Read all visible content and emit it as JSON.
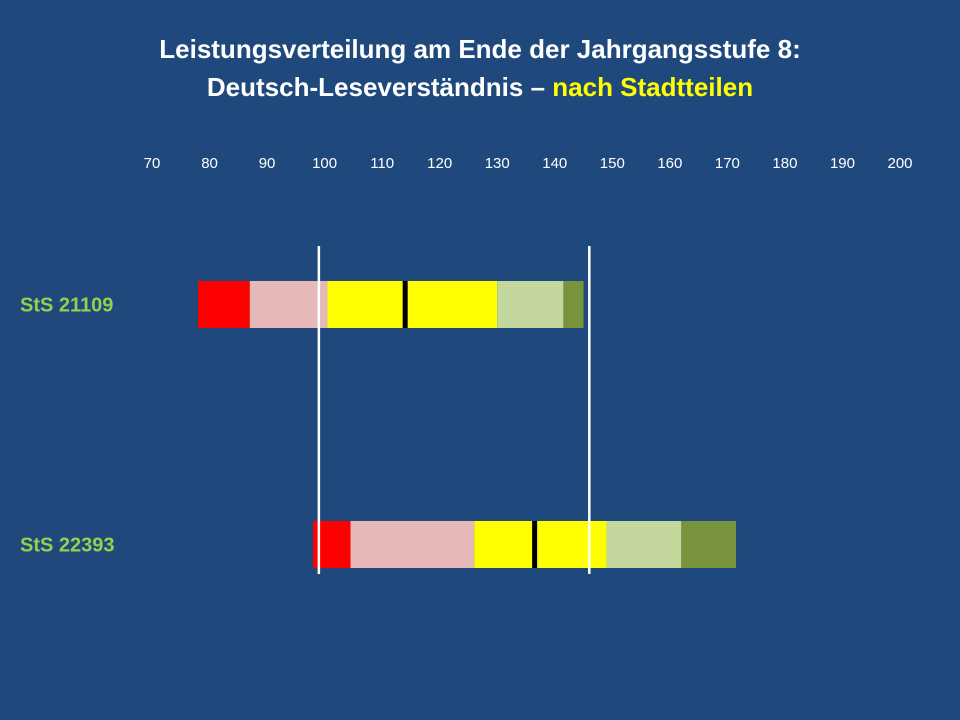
{
  "title": {
    "line1": "Leistungsverteilung am Ende der Jahrgangsstufe 8:",
    "line2_prefix": "Deutsch-Leseverständnis – ",
    "line2_highlight": "nach Stadtteilen"
  },
  "colors": {
    "background": "#1f497d",
    "title_text": "#ffffff",
    "title_highlight": "#ffff00",
    "row_label": "#92d050",
    "reference_line": "#ffffff",
    "median_marker": "#000000",
    "segments": [
      "#ff0000",
      "#e6b9b8",
      "#ffff00",
      "#ffff00",
      "#c3d69b",
      "#77933c"
    ]
  },
  "chart_data": {
    "type": "bar",
    "orientation": "horizontal",
    "subtype": "stacked-percentile-ranges",
    "xlim": [
      70,
      200
    ],
    "x_ticks": [
      70,
      80,
      90,
      100,
      110,
      120,
      130,
      140,
      150,
      160,
      170,
      180,
      190,
      200
    ],
    "grid": false,
    "categories": [
      "StS 21109",
      "StS 22393"
    ],
    "rows": [
      {
        "label": "StS 21109",
        "boundaries": [
          78,
          87,
          100.5,
          114,
          130,
          141.5,
          145
        ],
        "median": 114
      },
      {
        "label": "StS 22393",
        "boundaries": [
          98,
          104.5,
          126,
          136.5,
          149,
          162,
          171.5
        ],
        "median": 136.5
      }
    ],
    "reference_lines": [
      99,
      146
    ]
  }
}
